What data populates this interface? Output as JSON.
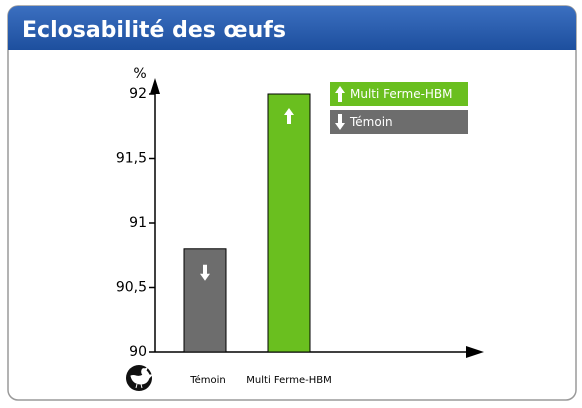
{
  "chart_data": {
    "type": "bar",
    "title": "Eclosabilité des œufs",
    "y_label": "%",
    "categories": [
      "Témoin",
      "Multi Ferme-HBM"
    ],
    "values": [
      90.8,
      92
    ],
    "colors": [
      "#6d6d6d",
      "#6abf1f"
    ],
    "ylim": [
      90,
      92
    ],
    "yticks": [
      90,
      {
        "value": 90.5,
        "label": "90,5"
      },
      91,
      {
        "value": 91.5,
        "label": "91,5"
      },
      92
    ]
  }
}
